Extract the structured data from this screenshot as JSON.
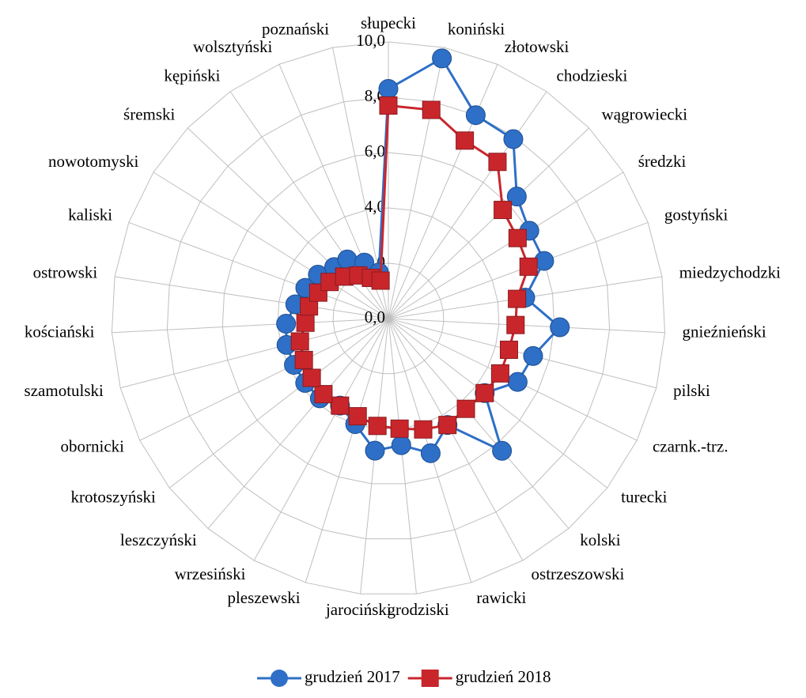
{
  "chart_data": {
    "type": "radar",
    "categories": [
      "słupecki",
      "koniński",
      "złotowski",
      "chodzieski",
      "wągrowiecki",
      "średzki",
      "gostyński",
      "miedzychodzki",
      "gnieźnieński",
      "pilski",
      "czarnk.-trz.",
      "turecki",
      "kolski",
      "ostrzeszowski",
      "rawicki",
      "grodziski",
      "jarociński",
      "pleszewski",
      "wrzesiński",
      "leszczyński",
      "krotoszyński",
      "obornicki",
      "szamotulski",
      "kościański",
      "ostrowski",
      "kaliski",
      "nowotomyski",
      "śremski",
      "kępiński",
      "wolsztyński",
      "poznański"
    ],
    "series": [
      {
        "name": "grudzień 2017",
        "color": "#2e6fc7",
        "marker": "circle",
        "values": [
          8.3,
          9.6,
          8.0,
          7.9,
          6.4,
          6.0,
          6.0,
          5.0,
          6.2,
          5.4,
          5.2,
          4.4,
          6.3,
          4.4,
          5.1,
          4.6,
          4.8,
          4.0,
          3.6,
          3.8,
          3.8,
          3.8,
          3.8,
          3.7,
          3.4,
          3.2,
          3.0,
          2.7,
          2.6,
          2.2,
          1.7
        ]
      },
      {
        "name": "grudzień 2018",
        "color": "#c9262c",
        "marker": "square",
        "values": [
          7.7,
          7.7,
          7.0,
          6.9,
          5.7,
          5.5,
          5.4,
          4.7,
          4.6,
          4.5,
          4.5,
          4.4,
          4.3,
          4.4,
          4.2,
          4.0,
          3.9,
          3.7,
          3.6,
          3.6,
          3.5,
          3.4,
          3.3,
          3.0,
          2.9,
          2.7,
          2.5,
          2.2,
          1.9,
          1.6,
          1.4
        ]
      }
    ],
    "ylim": [
      0,
      10
    ],
    "yticks": [
      {
        "value": 0,
        "label": "0,0"
      },
      {
        "value": 2,
        "label": "2,0"
      },
      {
        "value": 4,
        "label": "4,0"
      },
      {
        "value": 6,
        "label": "6,0"
      },
      {
        "value": 8,
        "label": "8,0"
      },
      {
        "value": 10,
        "label": "10,0"
      }
    ],
    "grid": true,
    "legend": "bottom"
  }
}
